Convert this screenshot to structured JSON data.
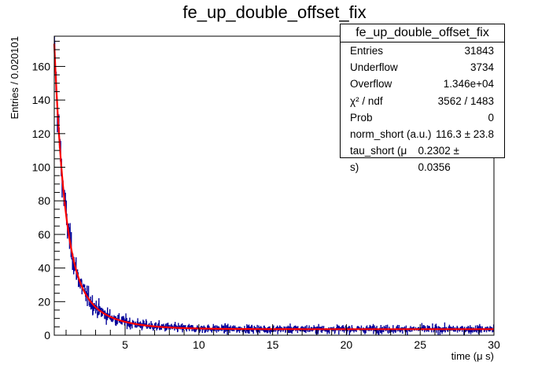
{
  "chart_data": {
    "type": "bar",
    "title": "fe_up_double_offset_fix",
    "xlabel": "time (μ s)",
    "ylabel": "Entries / 0.020101",
    "xlim": [
      0.2,
      30
    ],
    "ylim": [
      0,
      178
    ],
    "xticks": [
      5,
      10,
      15,
      20,
      25,
      30
    ],
    "yticks": [
      0,
      20,
      40,
      60,
      80,
      100,
      120,
      140,
      160
    ],
    "histogram": {
      "description_model": "exponential decay plus offset with noise",
      "norm": 116.3,
      "tau": 0.2302,
      "offset": 3.6,
      "bin_width": 0.020101,
      "color": "#000099"
    },
    "fit": {
      "color": "#ff0000",
      "norm": 116.3,
      "tau": 0.2302,
      "offset": 3.6
    },
    "grid": false
  },
  "stats": {
    "title": "fe_up_double_offset_fix",
    "rows": [
      {
        "label": "Entries",
        "value": "31843"
      },
      {
        "label": "Underflow",
        "value": "3734"
      },
      {
        "label": "Overflow",
        "value": "1.346e+04"
      },
      {
        "label": "χ² / ndf",
        "value": "3562 / 1483"
      },
      {
        "label": "Prob",
        "value": "0"
      },
      {
        "label": "norm_short (a.u.)",
        "value": "116.3 ± 23.8"
      },
      {
        "label": "tau_short (μ s)",
        "value": "0.2302 ± 0.0356"
      }
    ]
  }
}
